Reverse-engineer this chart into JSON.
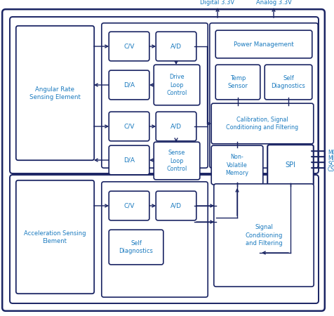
{
  "bg_color": "#ffffff",
  "border_color": "#1a2463",
  "text_color": "#1a7abf",
  "line_color": "#1a2463",
  "spi_labels": [
    "MOSI",
    "MISO",
    "SCK",
    "CSB"
  ],
  "labels": {
    "digital": "Digital 3.3V",
    "analog": "Analog 3.3V",
    "angular_rate": "Angular Rate\nSensing Element",
    "cv1": "C/V",
    "ad1": "A/D",
    "da1": "D/A",
    "drive_loop": "Drive\nLoop\nControl",
    "cv2": "C/V",
    "ad2": "A/D",
    "da2": "D/A",
    "sense_loop": "Sense\nLoop\nControl",
    "power_mgmt": "Power Management",
    "temp_sensor": "Temp\nSensor",
    "self_diag_top": "Self\nDiagnostics",
    "calib": "Calibration, Signal\nConditioning and Filtering",
    "non_volatile": "Non-\nVolatile\nMemory",
    "spi": "SPI",
    "acceleration": "Acceleration Sensing\nElement",
    "cv3": "C/V",
    "ad3": "A/D",
    "self_diag_bot": "Self\nDiagnostics",
    "signal_cond": "Signal\nConditioning\nand Filtering"
  }
}
